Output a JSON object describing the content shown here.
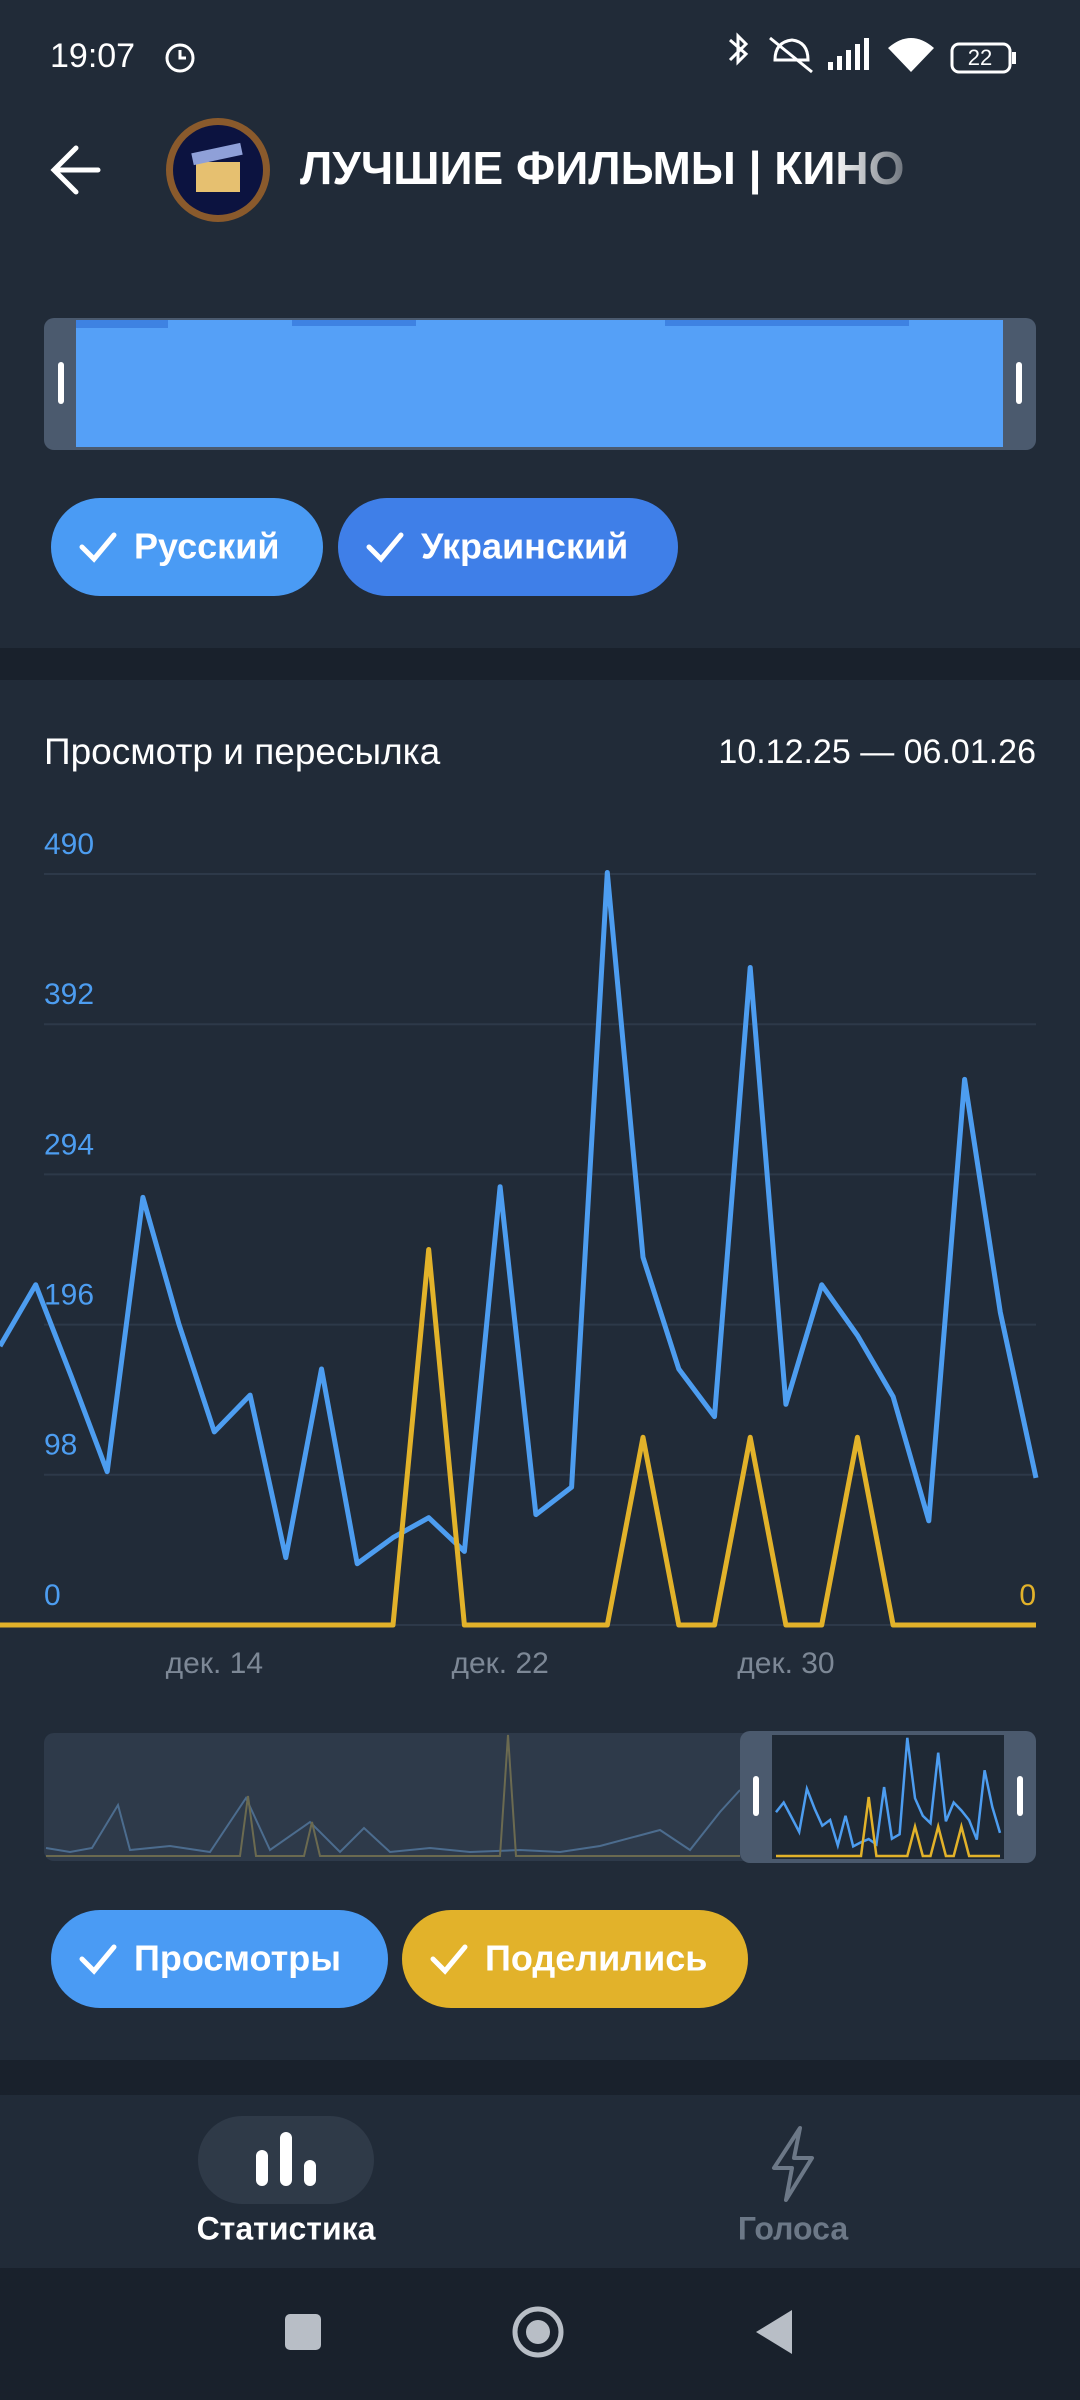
{
  "status_bar": {
    "time": "19:07",
    "battery": "22"
  },
  "header": {
    "title": "ЛУЧШИЕ ФИЛЬМЫ | КИНО"
  },
  "language_filters": [
    "Русский",
    "Украинский"
  ],
  "chart_data": {
    "type": "line",
    "title": "Просмотр и пересылка",
    "subtitle": "10.12.25 — 06.01.26",
    "categories": [
      null,
      null,
      null,
      null,
      null,
      null,
      "дек. 14",
      null,
      null,
      null,
      null,
      null,
      null,
      null,
      "дек. 22",
      null,
      null,
      null,
      null,
      null,
      null,
      null,
      "дек. 30",
      null,
      null,
      null,
      null,
      null,
      null,
      null
    ],
    "series": [
      {
        "name": "Просмотры",
        "color": "#4d9df0",
        "values": [
          182,
          222,
          162,
          100,
          279,
          197,
          126,
          150,
          44,
          167,
          40,
          57,
          70,
          48,
          286,
          72,
          90,
          491,
          240,
          167,
          136,
          429,
          144,
          222,
          189,
          149,
          68,
          356,
          204,
          96
        ]
      },
      {
        "name": "Поделились",
        "color": "#e2b22a",
        "axis": "y2",
        "values": [
          0,
          0,
          0,
          0,
          0,
          0,
          0,
          0,
          0,
          0,
          0,
          0,
          2,
          0,
          0,
          0,
          0,
          0,
          1,
          0,
          0,
          1,
          0,
          0,
          1,
          0,
          0,
          0,
          0,
          0
        ]
      }
    ],
    "ylim": [
      0,
      490
    ],
    "yticks": [
      0,
      98,
      196,
      294,
      392,
      490
    ],
    "y2lim": [
      0,
      4
    ],
    "y2ticks": [
      0
    ],
    "grid": true
  },
  "bottom_nav": [
    "Статистика",
    "Голоса"
  ]
}
